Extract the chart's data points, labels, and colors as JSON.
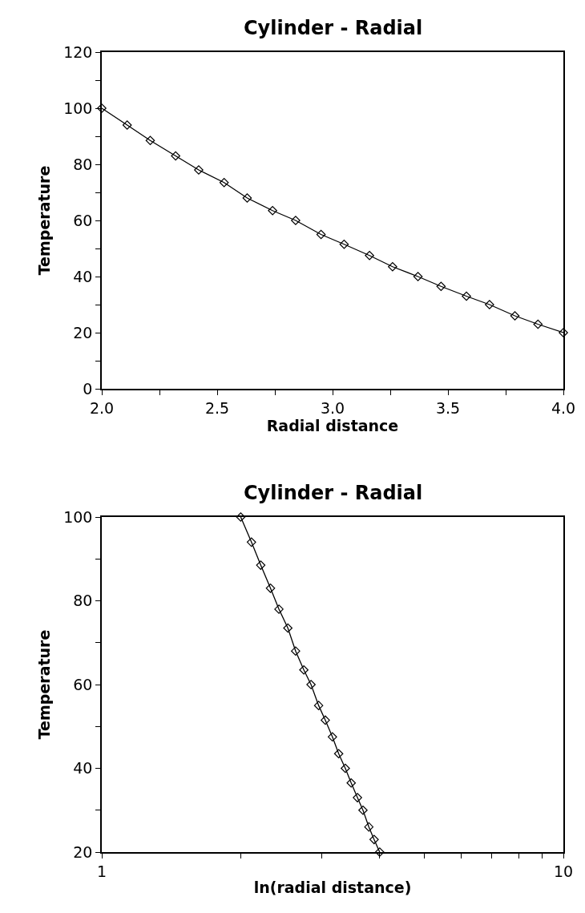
{
  "chart_data": [
    {
      "type": "line",
      "title": "Cylinder - Radial",
      "xlabel": "Radial distance",
      "ylabel": "Temperature",
      "marker": "diamond",
      "x": [
        2.0,
        2.11,
        2.21,
        2.32,
        2.42,
        2.53,
        2.63,
        2.74,
        2.84,
        2.95,
        3.05,
        3.16,
        3.26,
        3.37,
        3.47,
        3.58,
        3.68,
        3.79,
        3.89,
        4.0
      ],
      "series": [
        {
          "color": "#000000",
          "values": [
            100,
            94,
            88.5,
            83,
            78,
            73.5,
            68,
            63.5,
            60,
            55,
            51.5,
            47.5,
            43.5,
            40,
            36.5,
            33,
            30,
            26,
            23,
            20
          ]
        }
      ],
      "xlim": [
        2.0,
        4.0
      ],
      "xticks": [
        {
          "value": 2.0,
          "label": "2.0"
        },
        {
          "value": 2.25,
          "label": null
        },
        {
          "value": 2.5,
          "label": "2.5"
        },
        {
          "value": 2.75,
          "label": null
        },
        {
          "value": 3.0,
          "label": "3.0"
        },
        {
          "value": 3.25,
          "label": null
        },
        {
          "value": 3.5,
          "label": "3.5"
        },
        {
          "value": 3.75,
          "label": null
        },
        {
          "value": 4.0,
          "label": "4.0"
        }
      ],
      "ylim": [
        0,
        120
      ],
      "yticks": [
        0,
        {
          "value": 10,
          "label": null
        },
        20,
        {
          "value": 30,
          "label": null
        },
        40,
        {
          "value": 50,
          "label": null
        },
        60,
        {
          "value": 70,
          "label": null
        },
        80,
        {
          "value": 90,
          "label": null
        },
        100,
        {
          "value": 110,
          "label": null
        },
        120
      ]
    },
    {
      "type": "line",
      "title": "Cylinder - Radial",
      "xlabel": "ln(radial distance)",
      "ylabel": "Temperature",
      "marker": "diamond",
      "log": "x",
      "x": [
        2.0,
        2.11,
        2.21,
        2.32,
        2.42,
        2.53,
        2.63,
        2.74,
        2.84,
        2.95,
        3.05,
        3.16,
        3.26,
        3.37,
        3.47,
        3.58,
        3.68,
        3.79,
        3.89,
        4.0
      ],
      "series": [
        {
          "color": "#000000",
          "values": [
            100,
            94,
            88.5,
            83,
            78,
            73.5,
            68,
            63.5,
            60,
            55,
            51.5,
            47.5,
            43.5,
            40,
            36.5,
            33,
            30,
            26,
            23,
            20
          ]
        }
      ],
      "xlim": [
        1,
        10
      ],
      "xticks": [
        1,
        {
          "value": 2,
          "label": null
        },
        {
          "value": 3,
          "label": null
        },
        {
          "value": 4,
          "label": null
        },
        {
          "value": 5,
          "label": null
        },
        {
          "value": 6,
          "label": null
        },
        {
          "value": 7,
          "label": null
        },
        {
          "value": 8,
          "label": null
        },
        {
          "value": 9,
          "label": null
        },
        10
      ],
      "ylim": [
        20,
        100
      ],
      "yticks": [
        20,
        {
          "value": 30,
          "label": null
        },
        40,
        {
          "value": 50,
          "label": null
        },
        60,
        {
          "value": 70,
          "label": null
        },
        80,
        {
          "value": 90,
          "label": null
        },
        100
      ]
    }
  ]
}
